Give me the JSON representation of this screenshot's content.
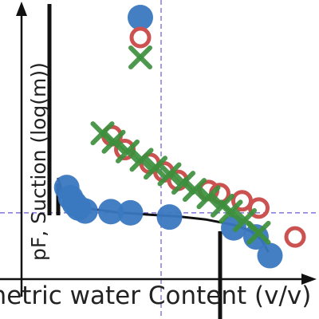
{
  "chart_data": {
    "type": "scatter",
    "title": "",
    "xlabel": "metric water Content (v/v)",
    "ylabel": "pF, Suction (log(m))",
    "xlim": [
      0.05,
      0.55
    ],
    "ylim": [
      0.5,
      5.0
    ],
    "reference_lines": {
      "x": 0.3,
      "y": 1.6
    },
    "series": [
      {
        "marker": "circle-filled",
        "color": "#3a78c0",
        "points": [
          [
            0.131,
            2.02
          ],
          [
            0.138,
            1.85
          ],
          [
            0.145,
            1.75
          ],
          [
            0.152,
            1.68
          ],
          [
            0.164,
            1.63
          ],
          [
            0.21,
            1.62
          ],
          [
            0.245,
            1.6
          ],
          [
            0.315,
            1.53
          ],
          [
            0.43,
            1.35
          ],
          [
            0.47,
            1.2
          ],
          [
            0.495,
            0.89
          ]
        ]
      },
      {
        "marker": "circle-open",
        "color": "#cc5252",
        "points": [
          [
            0.212,
            2.88
          ],
          [
            0.235,
            2.65
          ],
          [
            0.28,
            2.42
          ],
          [
            0.305,
            2.28
          ],
          [
            0.33,
            2.14
          ],
          [
            0.385,
            1.97
          ],
          [
            0.405,
            1.92
          ],
          [
            0.445,
            1.8
          ],
          [
            0.475,
            1.68
          ],
          [
            0.54,
            1.2
          ]
        ]
      },
      {
        "marker": "cross",
        "color": "#3d8f3d",
        "points": [
          [
            0.195,
            2.92
          ],
          [
            0.215,
            2.78
          ],
          [
            0.24,
            2.62
          ],
          [
            0.265,
            2.48
          ],
          [
            0.29,
            2.35
          ],
          [
            0.315,
            2.24
          ],
          [
            0.34,
            2.1
          ],
          [
            0.36,
            1.98
          ],
          [
            0.385,
            1.86
          ],
          [
            0.41,
            1.72
          ],
          [
            0.425,
            1.62
          ],
          [
            0.45,
            1.48
          ],
          [
            0.475,
            1.27
          ]
        ]
      }
    ],
    "fit_curve": {
      "color": "#111111",
      "points": [
        [
          0.115,
          2.18
        ],
        [
          0.125,
          1.9
        ],
        [
          0.14,
          1.76
        ],
        [
          0.17,
          1.67
        ],
        [
          0.22,
          1.61
        ],
        [
          0.28,
          1.57
        ],
        [
          0.33,
          1.54
        ],
        [
          0.38,
          1.49
        ],
        [
          0.43,
          1.4
        ],
        [
          0.46,
          1.3
        ],
        [
          0.48,
          1.15
        ],
        [
          0.492,
          0.95
        ]
      ]
    },
    "legend_placement": "top"
  }
}
